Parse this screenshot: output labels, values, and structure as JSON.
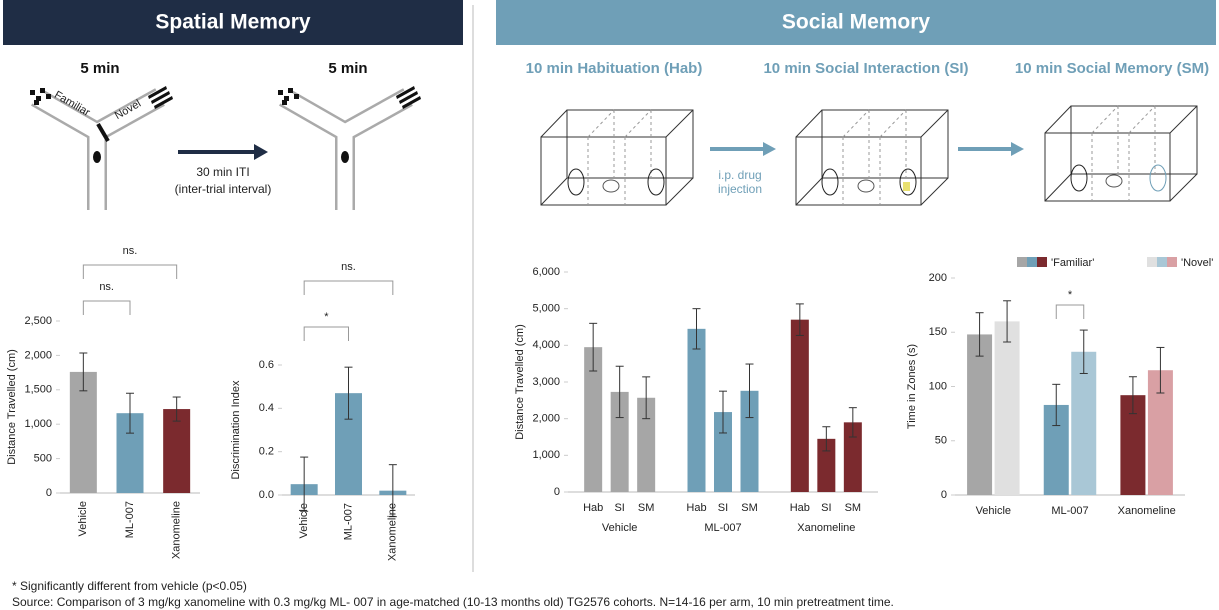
{
  "panels": {
    "spatial": {
      "title": "Spatial Memory",
      "trial1": "5 min",
      "trial2": "5 min",
      "arm_familiar": "Familiar",
      "arm_novel": "Novel",
      "iti": "30 min ITI",
      "iti_note": "(inter-trial interval)"
    },
    "social": {
      "title": "Social Memory",
      "steps": [
        "10 min Habituation (Hab)",
        "10 min Social Interaction (SI)",
        "10 min Social Memory (SM)"
      ],
      "injection": [
        "i.p. drug",
        "injection"
      ]
    }
  },
  "chart_data": [
    {
      "type": "bar",
      "y_label": "Distance Travelled (cm)",
      "categories": [
        "Vehicle",
        "ML-007",
        "Xanomeline"
      ],
      "values": [
        1760,
        1160,
        1220
      ],
      "errors": [
        275,
        290,
        175
      ],
      "colors": [
        "#a6a6a6",
        "#6f9fb7",
        "#7b2a2e"
      ],
      "ylim": [
        0,
        2500
      ],
      "yticks": [
        0,
        500,
        {
          "value": 1000,
          "label": "1,000"
        },
        {
          "value": 1500,
          "label": "1,500"
        },
        {
          "value": 2000,
          "label": "2,000"
        },
        {
          "value": 2500,
          "label": "2,500"
        }
      ],
      "annotations": [
        {
          "label": "ns.",
          "between": [
            "Vehicle",
            "ML-007"
          ]
        },
        {
          "label": "ns.",
          "between": [
            "Vehicle",
            "Xanomeline"
          ]
        }
      ]
    },
    {
      "type": "bar",
      "y_label": "Discrimination Index",
      "categories": [
        "Vehicle",
        "ML-007",
        "Xanomeline"
      ],
      "values": [
        0.05,
        0.47,
        0.02
      ],
      "errors": [
        0.125,
        0.12,
        0.12
      ],
      "color": "#6f9fb7",
      "ylim": [
        0,
        0.6
      ],
      "yticks": [
        {
          "value": 0,
          "label": "0.0"
        },
        0.2,
        0.4,
        0.6
      ],
      "annotations": [
        {
          "label": "*",
          "between": [
            "Vehicle",
            "ML-007"
          ]
        },
        {
          "label": "ns.",
          "between": [
            "Vehicle",
            "Xanomeline"
          ]
        }
      ]
    },
    {
      "type": "grouped-bar",
      "y_label": "Distance Travelled (cm)",
      "categories": [
        "Vehicle",
        "ML-007",
        "Xanomeline"
      ],
      "legend": "below-bars",
      "series": [
        {
          "name": "Hab",
          "colors": [
            "#a6a6a6",
            "#6f9fb7",
            "#7b2a2e"
          ],
          "values": [
            3950,
            4450,
            4700
          ],
          "errors": [
            650,
            550,
            430
          ]
        },
        {
          "name": "SI",
          "colors": [
            "#a6a6a6",
            "#6f9fb7",
            "#7b2a2e"
          ],
          "values": [
            2730,
            2180,
            1450
          ],
          "errors": [
            700,
            570,
            330
          ]
        },
        {
          "name": "SM",
          "colors": [
            "#a6a6a6",
            "#6f9fb7",
            "#7b2a2e"
          ],
          "values": [
            2570,
            2760,
            1900
          ],
          "errors": [
            570,
            730,
            400
          ]
        }
      ],
      "ylim": [
        0,
        6000
      ],
      "yticks": [
        0,
        {
          "value": 1000,
          "label": "1,000"
        },
        {
          "value": 2000,
          "label": "2,000"
        },
        {
          "value": 3000,
          "label": "3,000"
        },
        {
          "value": 4000,
          "label": "4,000"
        },
        {
          "value": 5000,
          "label": "5,000"
        },
        {
          "value": 6000,
          "label": "6,000"
        }
      ]
    },
    {
      "type": "grouped-bar",
      "y_label": "Time in Zones (s)",
      "categories": [
        "Vehicle",
        "ML-007",
        "Xanomeline"
      ],
      "legend": "top-right",
      "series": [
        {
          "name": "'Familiar'",
          "colors": [
            "#a6a6a6",
            "#6f9fb7",
            "#7b2a2e"
          ],
          "values": [
            148,
            83,
            92
          ],
          "errors": [
            20,
            19,
            17
          ]
        },
        {
          "name": "'Novel'",
          "colors": [
            "#e0e0e0",
            "#a9c7d6",
            "#d9a0a4"
          ],
          "values": [
            160,
            132,
            115
          ],
          "errors": [
            19,
            20,
            21
          ]
        }
      ],
      "ylim": [
        0,
        200
      ],
      "yticks": [
        0,
        50,
        100,
        150,
        200
      ],
      "annotations": [
        {
          "label": "*",
          "category": "ML-007",
          "between": [
            "'Familiar'",
            "'Novel'"
          ]
        }
      ]
    }
  ],
  "footnotes": [
    "* Significantly different from vehicle (p<0.05)",
    "Source: Comparison of 3 mg/kg xanomeline with 0.3 mg/kg ML- 007 in age-matched (10-13 months old) TG2576 cohorts. N=14-16 per arm, 10 min pretreatment time."
  ]
}
